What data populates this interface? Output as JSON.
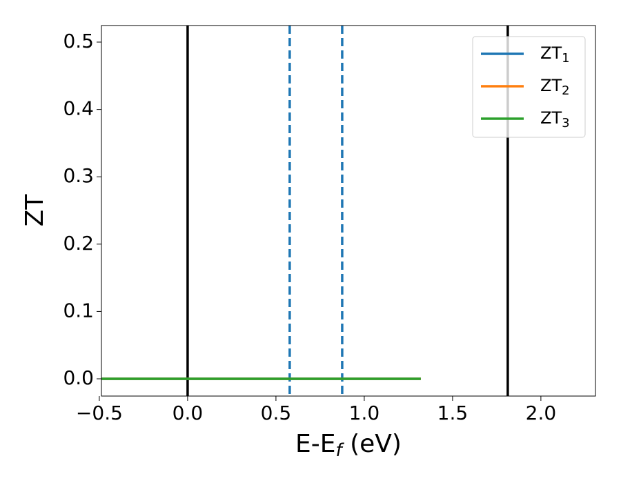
{
  "chart_data": {
    "type": "line",
    "x_label": [
      "E-E",
      "f",
      " (eV)"
    ],
    "y_label": "ZT",
    "x": [
      -0.49,
      1.32
    ],
    "series": [
      {
        "name": "ZT",
        "subscript": "1",
        "color": "#1f77b4",
        "values": [
          0,
          0
        ]
      },
      {
        "name": "ZT",
        "subscript": "2",
        "color": "#ff7f0e",
        "values": [
          0,
          0
        ]
      },
      {
        "name": "ZT",
        "subscript": "3",
        "color": "#2ca02c",
        "values": [
          0,
          0
        ]
      }
    ],
    "vlines": [
      {
        "x": 0,
        "color": "#000000",
        "dashed": false
      },
      {
        "x": 0.578,
        "color": "#1f77b4",
        "dashed": true
      },
      {
        "x": 0.875,
        "color": "#1f77b4",
        "dashed": true
      },
      {
        "x": 1.8125,
        "color": "#000000",
        "dashed": false
      }
    ],
    "xlim": [
      -0.488,
      2.309
    ],
    "ylim": [
      -0.0256,
      0.5246
    ],
    "xticks": [
      {
        "value": -0.5,
        "label": "−0.5"
      },
      {
        "value": 0,
        "label": "0.0"
      },
      0.5,
      {
        "value": 1,
        "label": "1.0"
      },
      1.5,
      {
        "value": 2,
        "label": "2.0"
      }
    ],
    "yticks": [
      {
        "value": 0,
        "label": "0.0"
      },
      0.1,
      0.2,
      0.3,
      0.4,
      0.5
    ],
    "grid": false,
    "legend": "upper-right"
  }
}
